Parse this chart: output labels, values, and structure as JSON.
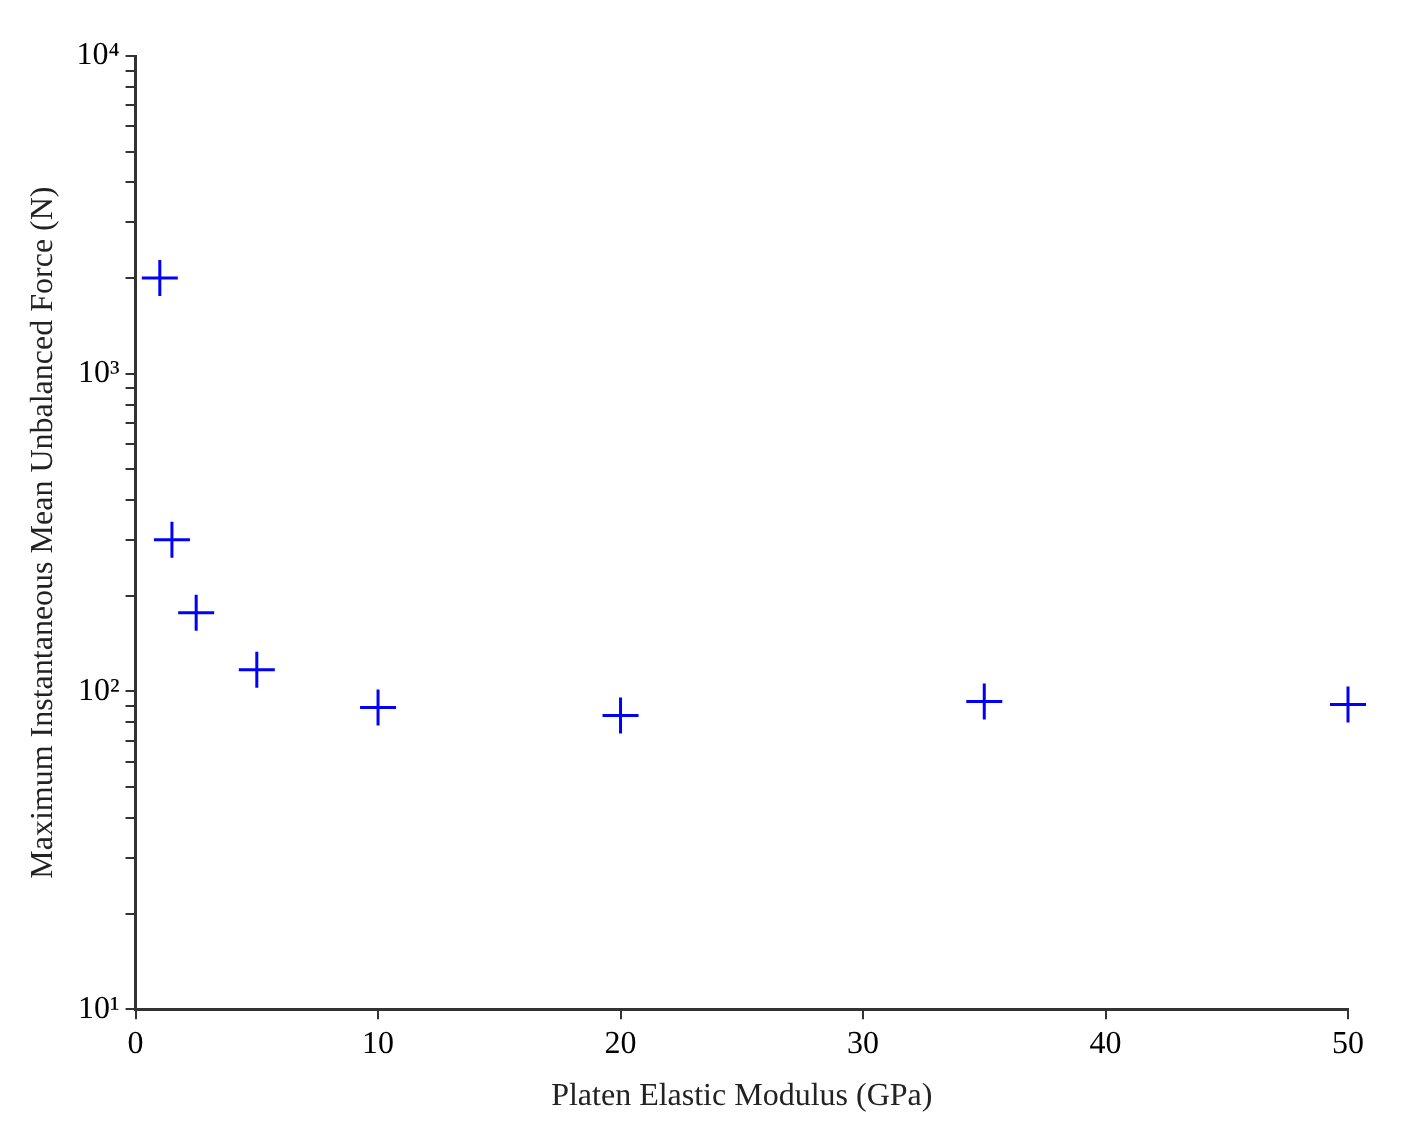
{
  "chart_data": {
    "type": "scatter",
    "xlabel": "Platen Elastic Modulus (GPa)",
    "ylabel": "Maximum Instantaneous Mean Unbalanced Force (N)",
    "x": [
      1,
      1.5,
      2.5,
      5,
      10,
      20,
      35,
      50
    ],
    "series": [
      {
        "color": "#0000ff",
        "values": [
          2000,
          300,
          177,
          117,
          89,
          84,
          93,
          91
        ]
      }
    ],
    "marker": "cross",
    "log": "y",
    "grid": false,
    "legend": false,
    "xlim": [
      0,
      50
    ],
    "xticks": [
      0,
      10,
      20,
      30,
      40,
      50
    ],
    "ylim": [
      10,
      10000
    ],
    "yticks": [
      {
        "value": 10,
        "label": "10¹"
      },
      {
        "value": 20,
        "label": null
      },
      {
        "value": 30,
        "label": null
      },
      {
        "value": 40,
        "label": null
      },
      {
        "value": 50,
        "label": null
      },
      {
        "value": 60,
        "label": null
      },
      {
        "value": 70,
        "label": null
      },
      {
        "value": 80,
        "label": null
      },
      {
        "value": 90,
        "label": null
      },
      {
        "value": 100,
        "label": "10²"
      },
      {
        "value": 200,
        "label": null
      },
      {
        "value": 300,
        "label": null
      },
      {
        "value": 400,
        "label": null
      },
      {
        "value": 500,
        "label": null
      },
      {
        "value": 600,
        "label": null
      },
      {
        "value": 700,
        "label": null
      },
      {
        "value": 800,
        "label": null
      },
      {
        "value": 900,
        "label": null
      },
      {
        "value": 1000,
        "label": "10³"
      },
      {
        "value": 2000,
        "label": null
      },
      {
        "value": 3000,
        "label": null
      },
      {
        "value": 4000,
        "label": null
      },
      {
        "value": 5000,
        "label": null
      },
      {
        "value": 6000,
        "label": null
      },
      {
        "value": 7000,
        "label": null
      },
      {
        "value": 8000,
        "label": null
      },
      {
        "value": 9000,
        "label": null
      },
      {
        "value": 10000,
        "label": "10⁴"
      }
    ]
  }
}
